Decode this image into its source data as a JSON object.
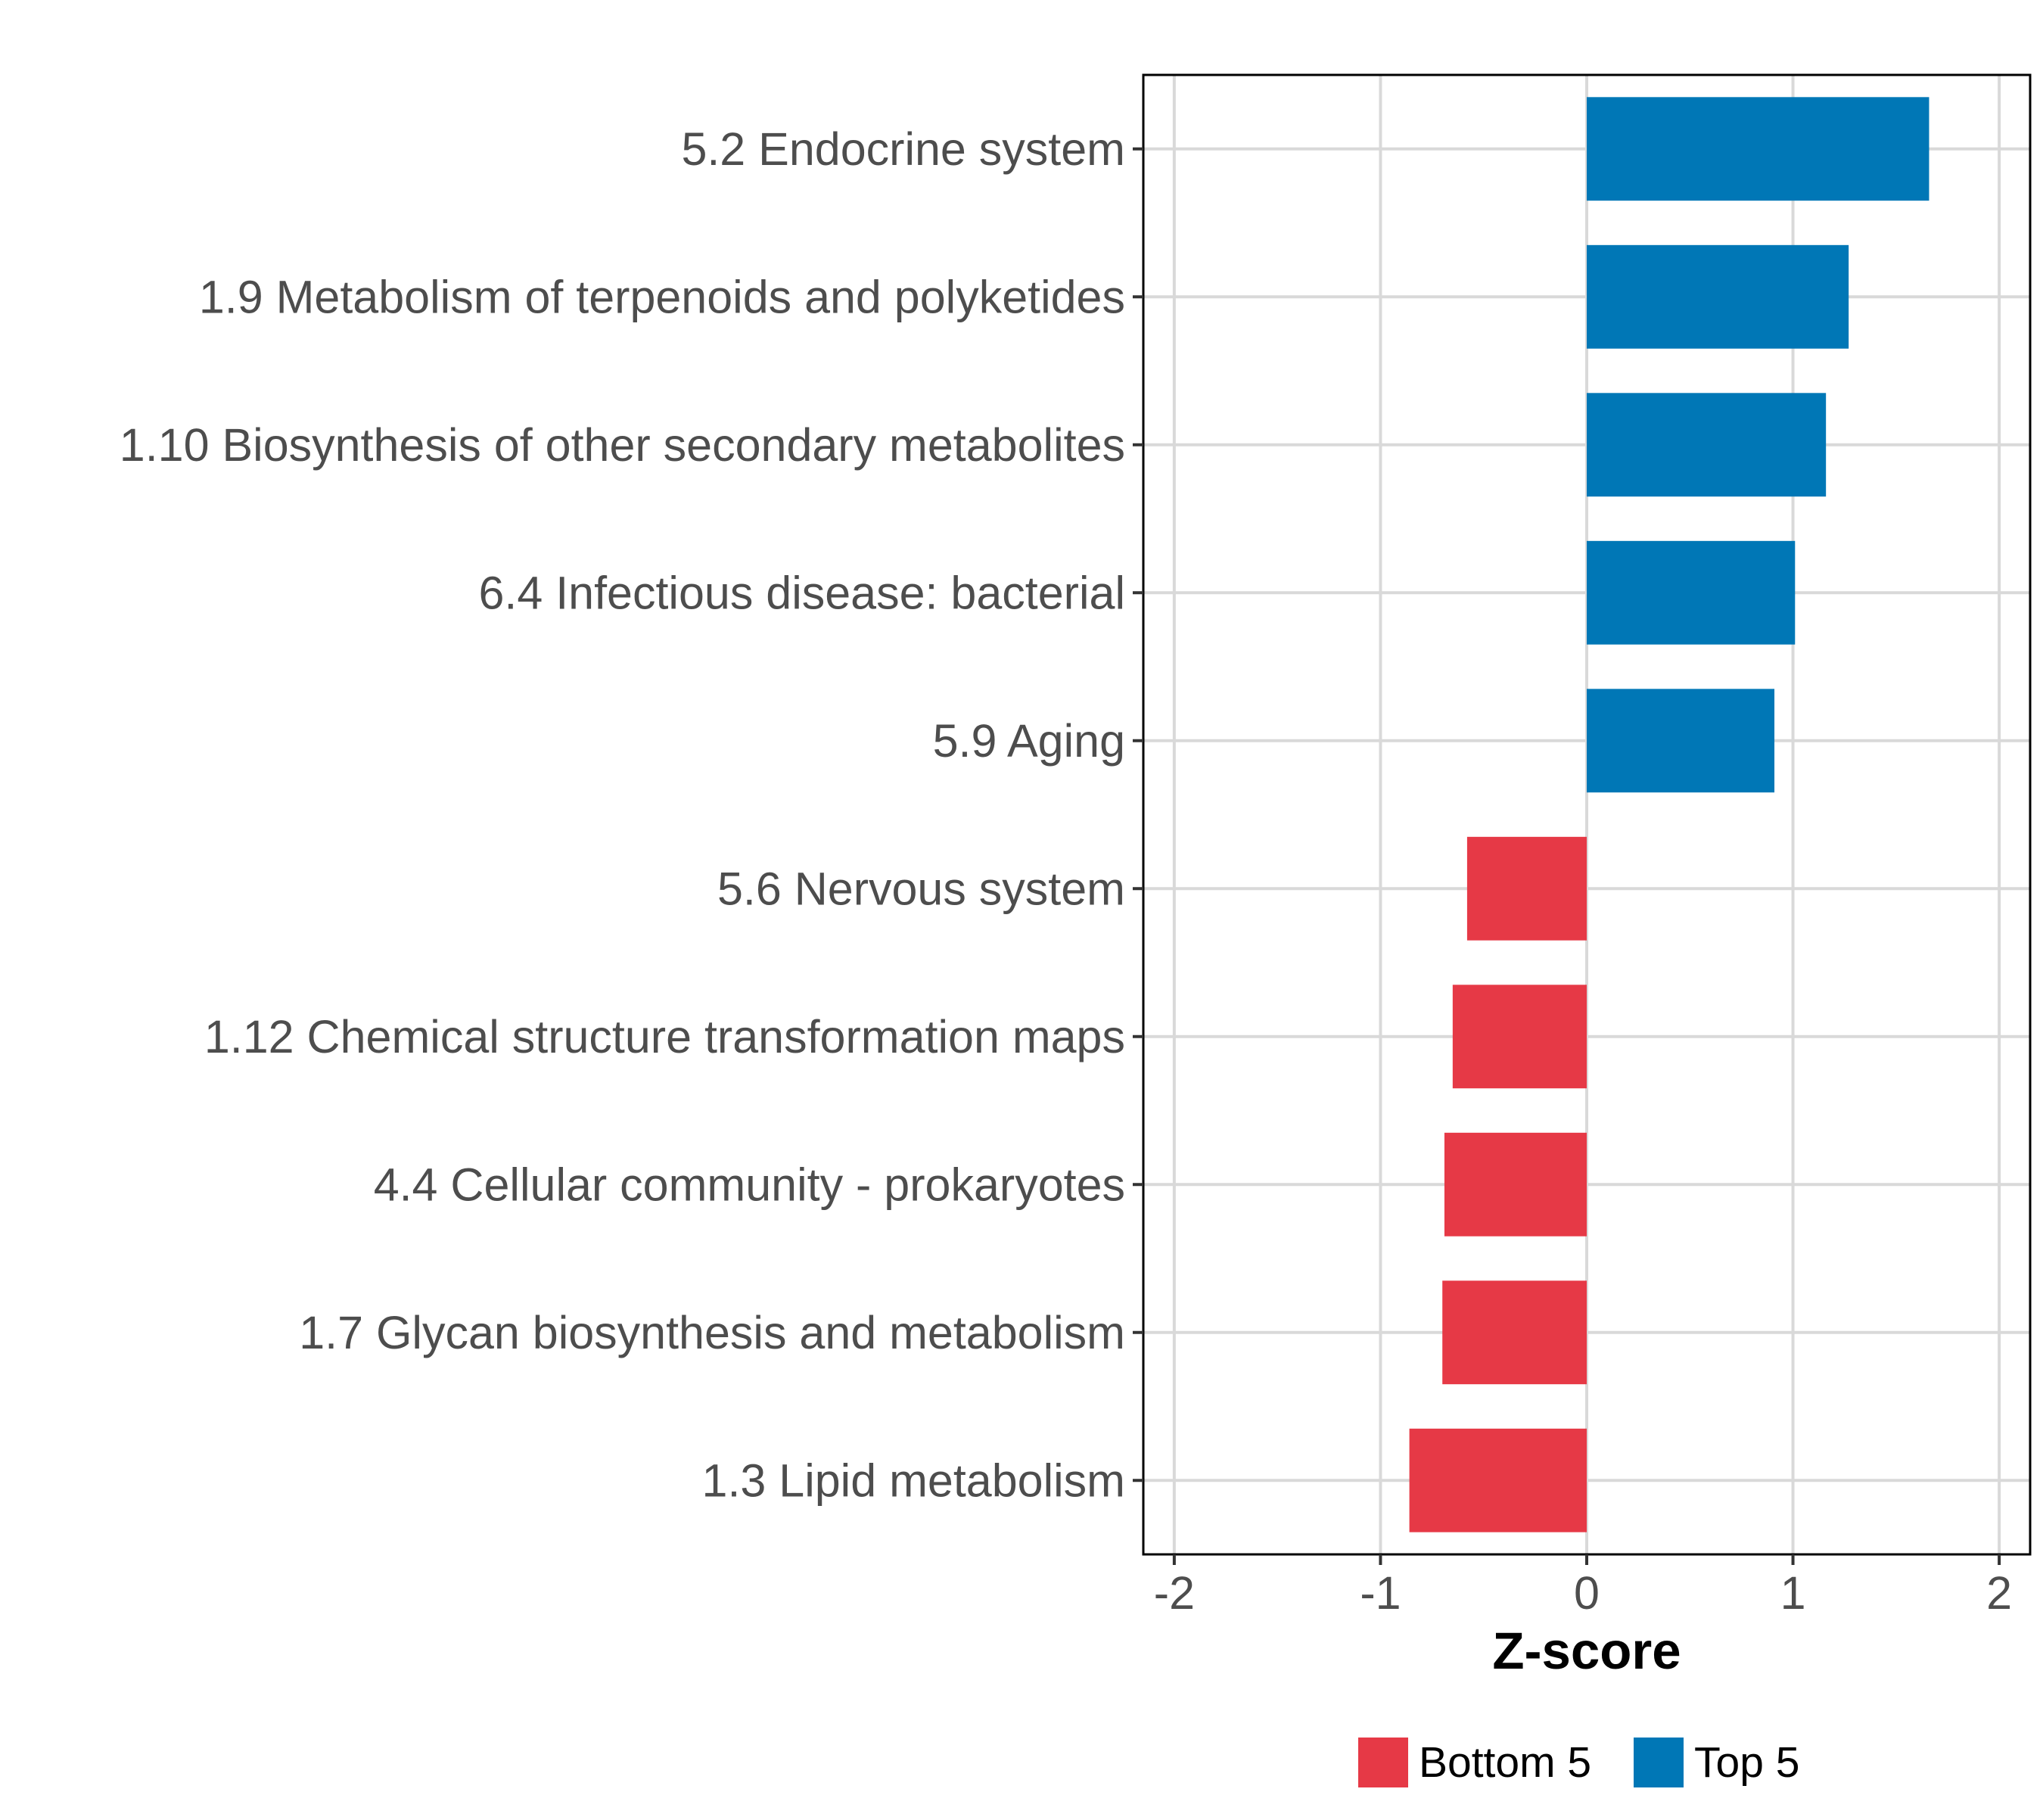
{
  "chart_data": {
    "type": "bar",
    "orientation": "horizontal",
    "title": "",
    "xlabel": "Z-score",
    "ylabel": "",
    "xlim": [
      -2.15,
      2.15
    ],
    "xticks": [
      -2,
      -1,
      0,
      1,
      2
    ],
    "xtick_labels": [
      "-2",
      "-1",
      "0",
      "1",
      "2"
    ],
    "grid": true,
    "legend_position": "bottom",
    "categories": [
      "5.2 Endocrine system",
      "1.9 Metabolism of terpenoids and polyketides",
      "1.10 Biosynthesis of other secondary metabolites",
      "6.4 Infectious disease: bacterial",
      "5.9 Aging",
      "5.6 Nervous system",
      "1.12 Chemical structure transformation maps",
      "4.4 Cellular community - prokaryotes",
      "1.7 Glycan biosynthesis and metabolism",
      "1.3 Lipid metabolism"
    ],
    "values": [
      1.66,
      1.27,
      1.16,
      1.01,
      0.91,
      -0.58,
      -0.65,
      -0.69,
      -0.7,
      -0.86
    ],
    "groups": [
      "Top 5",
      "Top 5",
      "Top 5",
      "Top 5",
      "Top 5",
      "Bottom 5",
      "Bottom 5",
      "Bottom 5",
      "Bottom 5",
      "Bottom 5"
    ],
    "legend": [
      {
        "name": "Bottom 5",
        "color": "#e63946"
      },
      {
        "name": "Top 5",
        "color": "#0077b6"
      }
    ]
  }
}
